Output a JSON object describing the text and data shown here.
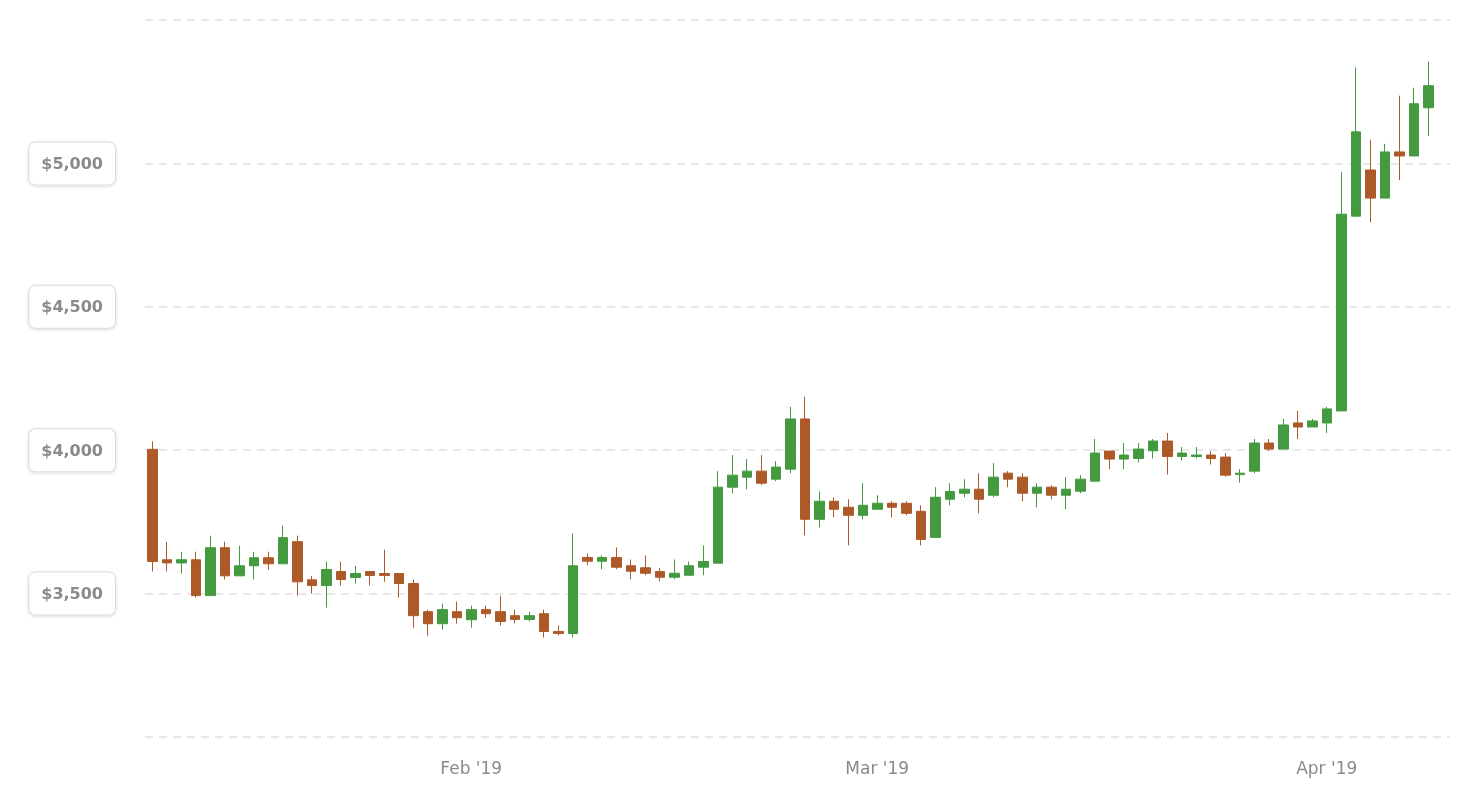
{
  "chart_data": {
    "type": "candlestick",
    "x": [
      "2019-01-10",
      "2019-01-11",
      "2019-01-12",
      "2019-01-13",
      "2019-01-14",
      "2019-01-15",
      "2019-01-16",
      "2019-01-17",
      "2019-01-18",
      "2019-01-19",
      "2019-01-20",
      "2019-01-21",
      "2019-01-22",
      "2019-01-23",
      "2019-01-24",
      "2019-01-25",
      "2019-01-26",
      "2019-01-27",
      "2019-01-28",
      "2019-01-29",
      "2019-01-30",
      "2019-01-31",
      "2019-02-01",
      "2019-02-02",
      "2019-02-03",
      "2019-02-04",
      "2019-02-05",
      "2019-02-06",
      "2019-02-07",
      "2019-02-08",
      "2019-02-09",
      "2019-02-10",
      "2019-02-11",
      "2019-02-12",
      "2019-02-13",
      "2019-02-14",
      "2019-02-15",
      "2019-02-16",
      "2019-02-17",
      "2019-02-18",
      "2019-02-19",
      "2019-02-20",
      "2019-02-21",
      "2019-02-22",
      "2019-02-23",
      "2019-02-24",
      "2019-02-25",
      "2019-02-26",
      "2019-02-27",
      "2019-02-28",
      "2019-03-01",
      "2019-03-02",
      "2019-03-03",
      "2019-03-04",
      "2019-03-05",
      "2019-03-06",
      "2019-03-07",
      "2019-03-08",
      "2019-03-09",
      "2019-03-10",
      "2019-03-11",
      "2019-03-12",
      "2019-03-13",
      "2019-03-14",
      "2019-03-15",
      "2019-03-16",
      "2019-03-17",
      "2019-03-18",
      "2019-03-19",
      "2019-03-20",
      "2019-03-21",
      "2019-03-22",
      "2019-03-23",
      "2019-03-24",
      "2019-03-25",
      "2019-03-26",
      "2019-03-27",
      "2019-03-28",
      "2019-03-29",
      "2019-03-30",
      "2019-03-31",
      "2019-04-01",
      "2019-04-02",
      "2019-04-03",
      "2019-04-04",
      "2019-04-05",
      "2019-04-06",
      "2019-04-07",
      "2019-04-08"
    ],
    "ohlc": [
      [
        4003,
        4031,
        3577,
        3612
      ],
      [
        3618,
        3681,
        3577,
        3607
      ],
      [
        3607,
        3646,
        3570,
        3618
      ],
      [
        3618,
        3646,
        3486,
        3493
      ],
      [
        3493,
        3702,
        3493,
        3660
      ],
      [
        3660,
        3681,
        3549,
        3562
      ],
      [
        3562,
        3667,
        3562,
        3597
      ],
      [
        3597,
        3646,
        3549,
        3625
      ],
      [
        3625,
        3646,
        3583,
        3604
      ],
      [
        3604,
        3737,
        3604,
        3695
      ],
      [
        3681,
        3702,
        3493,
        3541
      ],
      [
        3548,
        3562,
        3500,
        3528
      ],
      [
        3528,
        3612,
        3451,
        3584
      ],
      [
        3577,
        3612,
        3528,
        3549
      ],
      [
        3556,
        3597,
        3535,
        3570
      ],
      [
        3577,
        3577,
        3528,
        3563
      ],
      [
        3570,
        3653,
        3541,
        3563
      ],
      [
        3570,
        3570,
        3486,
        3535
      ],
      [
        3535,
        3549,
        3381,
        3423
      ],
      [
        3437,
        3444,
        3353,
        3395
      ],
      [
        3395,
        3465,
        3374,
        3444
      ],
      [
        3437,
        3472,
        3395,
        3416
      ],
      [
        3409,
        3458,
        3381,
        3444
      ],
      [
        3444,
        3458,
        3416,
        3430
      ],
      [
        3437,
        3492,
        3389,
        3403
      ],
      [
        3423,
        3444,
        3396,
        3410
      ],
      [
        3410,
        3437,
        3403,
        3423
      ],
      [
        3430,
        3444,
        3347,
        3368
      ],
      [
        3368,
        3389,
        3354,
        3361
      ],
      [
        3361,
        3710,
        3347,
        3597
      ],
      [
        3626,
        3640,
        3599,
        3613
      ],
      [
        3613,
        3633,
        3585,
        3626
      ],
      [
        3626,
        3661,
        3585,
        3592
      ],
      [
        3597,
        3619,
        3550,
        3578
      ],
      [
        3590,
        3633,
        3564,
        3571
      ],
      [
        3577,
        3590,
        3543,
        3557
      ],
      [
        3557,
        3619,
        3550,
        3571
      ],
      [
        3564,
        3612,
        3564,
        3597
      ],
      [
        3592,
        3668,
        3564,
        3612
      ],
      [
        3606,
        3927,
        3606,
        3871
      ],
      [
        3871,
        3983,
        3850,
        3913
      ],
      [
        3906,
        3969,
        3864,
        3927
      ],
      [
        3927,
        3983,
        3878,
        3885
      ],
      [
        3899,
        3962,
        3892,
        3941
      ],
      [
        3934,
        4151,
        3920,
        4109
      ],
      [
        4109,
        4186,
        3703,
        3759
      ],
      [
        3759,
        3856,
        3731,
        3822
      ],
      [
        3822,
        3836,
        3766,
        3794
      ],
      [
        3801,
        3829,
        3668,
        3773
      ],
      [
        3773,
        3885,
        3759,
        3808
      ],
      [
        3794,
        3843,
        3794,
        3815
      ],
      [
        3815,
        3822,
        3766,
        3801
      ],
      [
        3815,
        3822,
        3773,
        3780
      ],
      [
        3787,
        3808,
        3668,
        3689
      ],
      [
        3696,
        3871,
        3696,
        3836
      ],
      [
        3829,
        3885,
        3808,
        3856
      ],
      [
        3850,
        3899,
        3836,
        3864
      ],
      [
        3864,
        3920,
        3780,
        3829
      ],
      [
        3843,
        3955,
        3836,
        3906
      ],
      [
        3920,
        3927,
        3871,
        3899
      ],
      [
        3906,
        3920,
        3822,
        3850
      ],
      [
        3850,
        3885,
        3801,
        3871
      ],
      [
        3871,
        3878,
        3829,
        3843
      ],
      [
        3843,
        3906,
        3794,
        3864
      ],
      [
        3857,
        3913,
        3850,
        3899
      ],
      [
        3892,
        4039,
        3892,
        3990
      ],
      [
        3997,
        3997,
        3934,
        3969
      ],
      [
        3969,
        4025,
        3934,
        3983
      ],
      [
        3971,
        4025,
        3957,
        4004
      ],
      [
        3998,
        4039,
        3971,
        4032
      ],
      [
        4032,
        4060,
        3915,
        3978
      ],
      [
        3978,
        4011,
        3964,
        3990
      ],
      [
        3978,
        4011,
        3971,
        3983
      ],
      [
        3983,
        3997,
        3950,
        3971
      ],
      [
        3976,
        3990,
        3908,
        3913
      ],
      [
        3915,
        3934,
        3887,
        3920
      ],
      [
        3927,
        4039,
        3920,
        4025
      ],
      [
        4025,
        4039,
        3997,
        4004
      ],
      [
        4004,
        4109,
        4004,
        4088
      ],
      [
        4095,
        4137,
        4039,
        4081
      ],
      [
        4081,
        4109,
        4081,
        4102
      ],
      [
        4095,
        4151,
        4060,
        4144
      ],
      [
        4137,
        4970,
        4137,
        4823
      ],
      [
        4816,
        5334,
        4816,
        5110
      ],
      [
        4977,
        5082,
        4795,
        4879
      ],
      [
        4879,
        5068,
        4879,
        5040
      ],
      [
        5040,
        5236,
        4942,
        5026
      ],
      [
        5026,
        5264,
        5026,
        5208
      ],
      [
        5194,
        5355,
        5096,
        5271
      ]
    ],
    "colors": [
      "#ad5a28",
      "#ad5a28",
      "#439a3f",
      "#ad5a28",
      "#439a3f",
      "#ad5a28",
      "#439a3f",
      "#439a3f",
      "#ad5a28",
      "#439a3f",
      "#ad5a28",
      "#ad5a28",
      "#439a3f",
      "#ad5a28",
      "#439a3f",
      "#ad5a28",
      "#ad5a28",
      "#ad5a28",
      "#ad5a28",
      "#ad5a28",
      "#439a3f",
      "#ad5a28",
      "#439a3f",
      "#ad5a28",
      "#ad5a28",
      "#ad5a28",
      "#439a3f",
      "#ad5a28",
      "#ad5a28",
      "#439a3f",
      "#ad5a28",
      "#439a3f",
      "#ad5a28",
      "#ad5a28",
      "#ad5a28",
      "#ad5a28",
      "#439a3f",
      "#439a3f",
      "#439a3f",
      "#439a3f",
      "#439a3f",
      "#439a3f",
      "#ad5a28",
      "#439a3f",
      "#439a3f",
      "#ad5a28",
      "#439a3f",
      "#ad5a28",
      "#ad5a28",
      "#439a3f",
      "#439a3f",
      "#ad5a28",
      "#ad5a28",
      "#ad5a28",
      "#439a3f",
      "#439a3f",
      "#439a3f",
      "#ad5a28",
      "#439a3f",
      "#ad5a28",
      "#ad5a28",
      "#439a3f",
      "#ad5a28",
      "#439a3f",
      "#439a3f",
      "#439a3f",
      "#ad5a28",
      "#439a3f",
      "#439a3f",
      "#439a3f",
      "#ad5a28",
      "#439a3f",
      "#439a3f",
      "#ad5a28",
      "#ad5a28",
      "#439a3f",
      "#439a3f",
      "#ad5a28",
      "#439a3f",
      "#ad5a28",
      "#439a3f",
      "#439a3f",
      "#439a3f",
      "#439a3f",
      "#ad5a28",
      "#439a3f",
      "#ad5a28",
      "#439a3f",
      "#439a3f"
    ],
    "xlim": [
      "2019-01-09T12:00",
      "2019-04-09T12:00"
    ],
    "xticks": [
      {
        "value": "2019-02-01",
        "label": "Feb '19"
      },
      {
        "value": "2019-03-01",
        "label": "Mar '19"
      },
      {
        "value": "2019-04-01",
        "label": "Apr '19"
      }
    ],
    "ylim": [
      3000,
      5500
    ],
    "yticks": [
      {
        "value": 3000,
        "label": null
      },
      {
        "value": 3500,
        "label": "$3,500"
      },
      {
        "value": 4000,
        "label": "$4,000"
      },
      {
        "value": 4500,
        "label": "$4,500"
      },
      {
        "value": 5000,
        "label": "$5,000"
      },
      {
        "value": 5500,
        "label": null
      }
    ],
    "grid": "y"
  }
}
